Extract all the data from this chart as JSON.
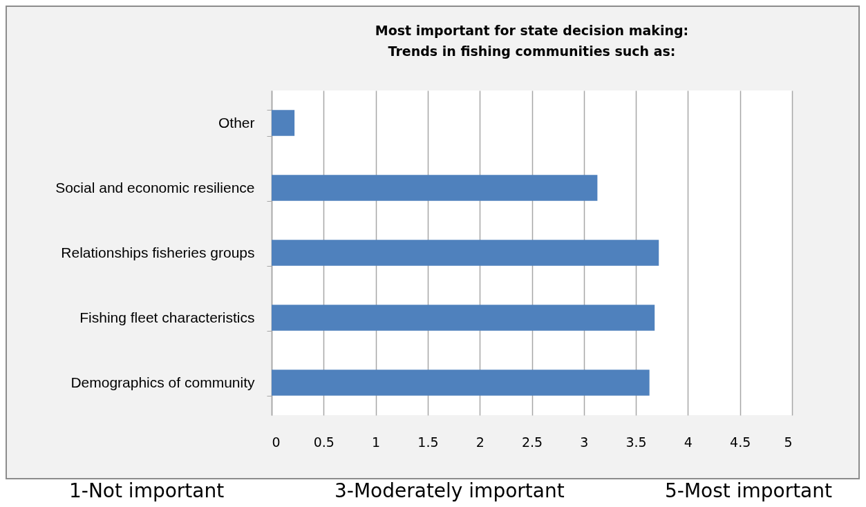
{
  "chart_data": {
    "type": "bar",
    "orientation": "horizontal",
    "title": [
      "Most important for state decision making:",
      "Trends in fishing communities such as:"
    ],
    "categories": [
      "Other",
      "Social and economic resilience",
      "Relationships fisheries groups",
      "Fishing fleet characteristics",
      "Demographics of community"
    ],
    "values": [
      0.22,
      3.13,
      3.72,
      3.68,
      3.63
    ],
    "color": "#4f81bd",
    "xlim": [
      0,
      5
    ],
    "xticks": [
      0,
      0.5,
      1,
      1.5,
      2,
      2.5,
      3,
      3.5,
      4,
      4.5,
      5
    ],
    "grid": "x",
    "annotations": [
      "1-Not important",
      "3-Moderately important",
      "5-Most important"
    ]
  }
}
